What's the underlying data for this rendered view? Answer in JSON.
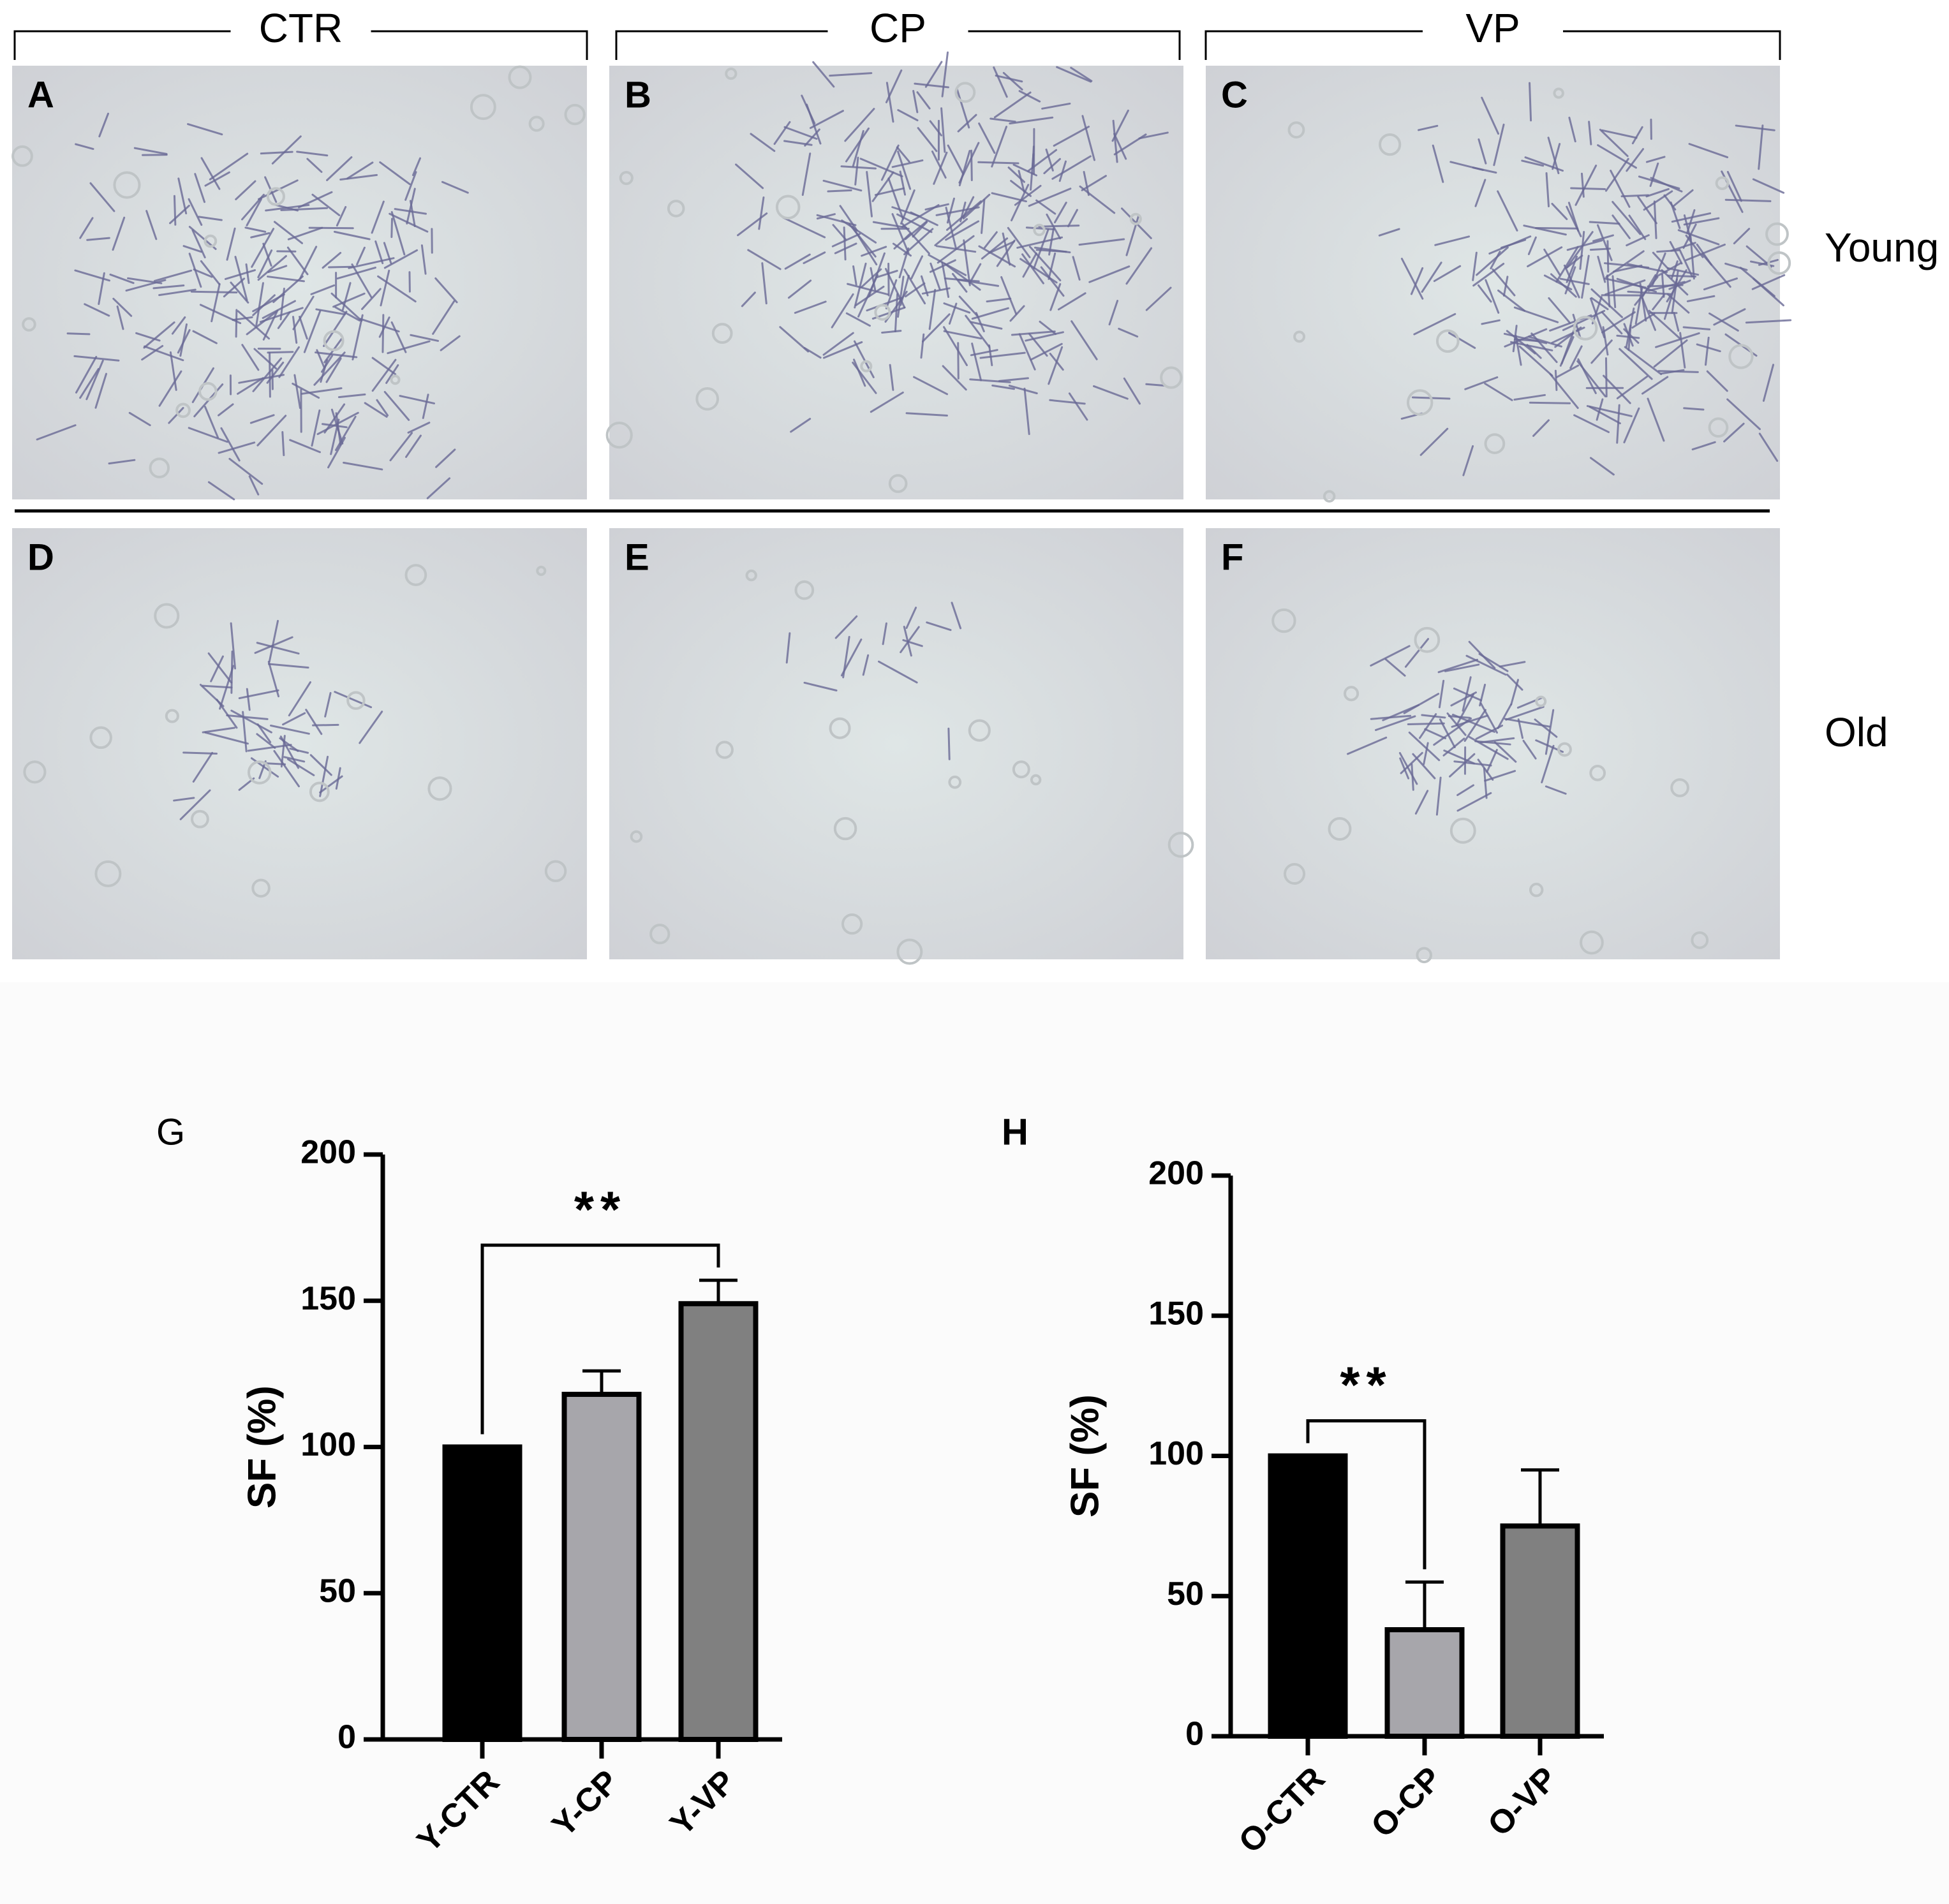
{
  "figure": {
    "columns": [
      "CTR",
      "CP",
      "VP"
    ],
    "rows": [
      "Young",
      "Old"
    ],
    "panels": [
      "A",
      "B",
      "C",
      "D",
      "E",
      "F"
    ]
  },
  "chart_data": [
    {
      "type": "bar",
      "panel": "G",
      "y_label": "SF (%)",
      "categories": [
        "Y-CTR",
        "Y-CP",
        "Y-VP"
      ],
      "values": [
        100,
        118,
        149
      ],
      "errors": [
        null,
        8,
        8
      ],
      "colors": [
        "#000000",
        "#a7a6ab",
        "#808080"
      ],
      "ylim": [
        0,
        200
      ],
      "yticks": [
        0,
        50,
        100,
        150,
        200
      ],
      "brackets": [
        {
          "label": "**",
          "between": [
            "Y-CTR",
            "Y-VP"
          ]
        }
      ]
    },
    {
      "type": "bar",
      "panel": "H",
      "y_label": "SF (%)",
      "categories": [
        "O-CTR",
        "O-CP",
        "O-VP"
      ],
      "values": [
        100,
        38,
        75
      ],
      "errors": [
        null,
        17,
        20
      ],
      "colors": [
        "#000000",
        "#a7a6ab",
        "#808080"
      ],
      "ylim": [
        0,
        200
      ],
      "yticks": [
        0,
        50,
        100,
        150,
        200
      ],
      "brackets": [
        {
          "label": "**",
          "between": [
            "O-CTR",
            "O-CP"
          ]
        }
      ]
    }
  ]
}
